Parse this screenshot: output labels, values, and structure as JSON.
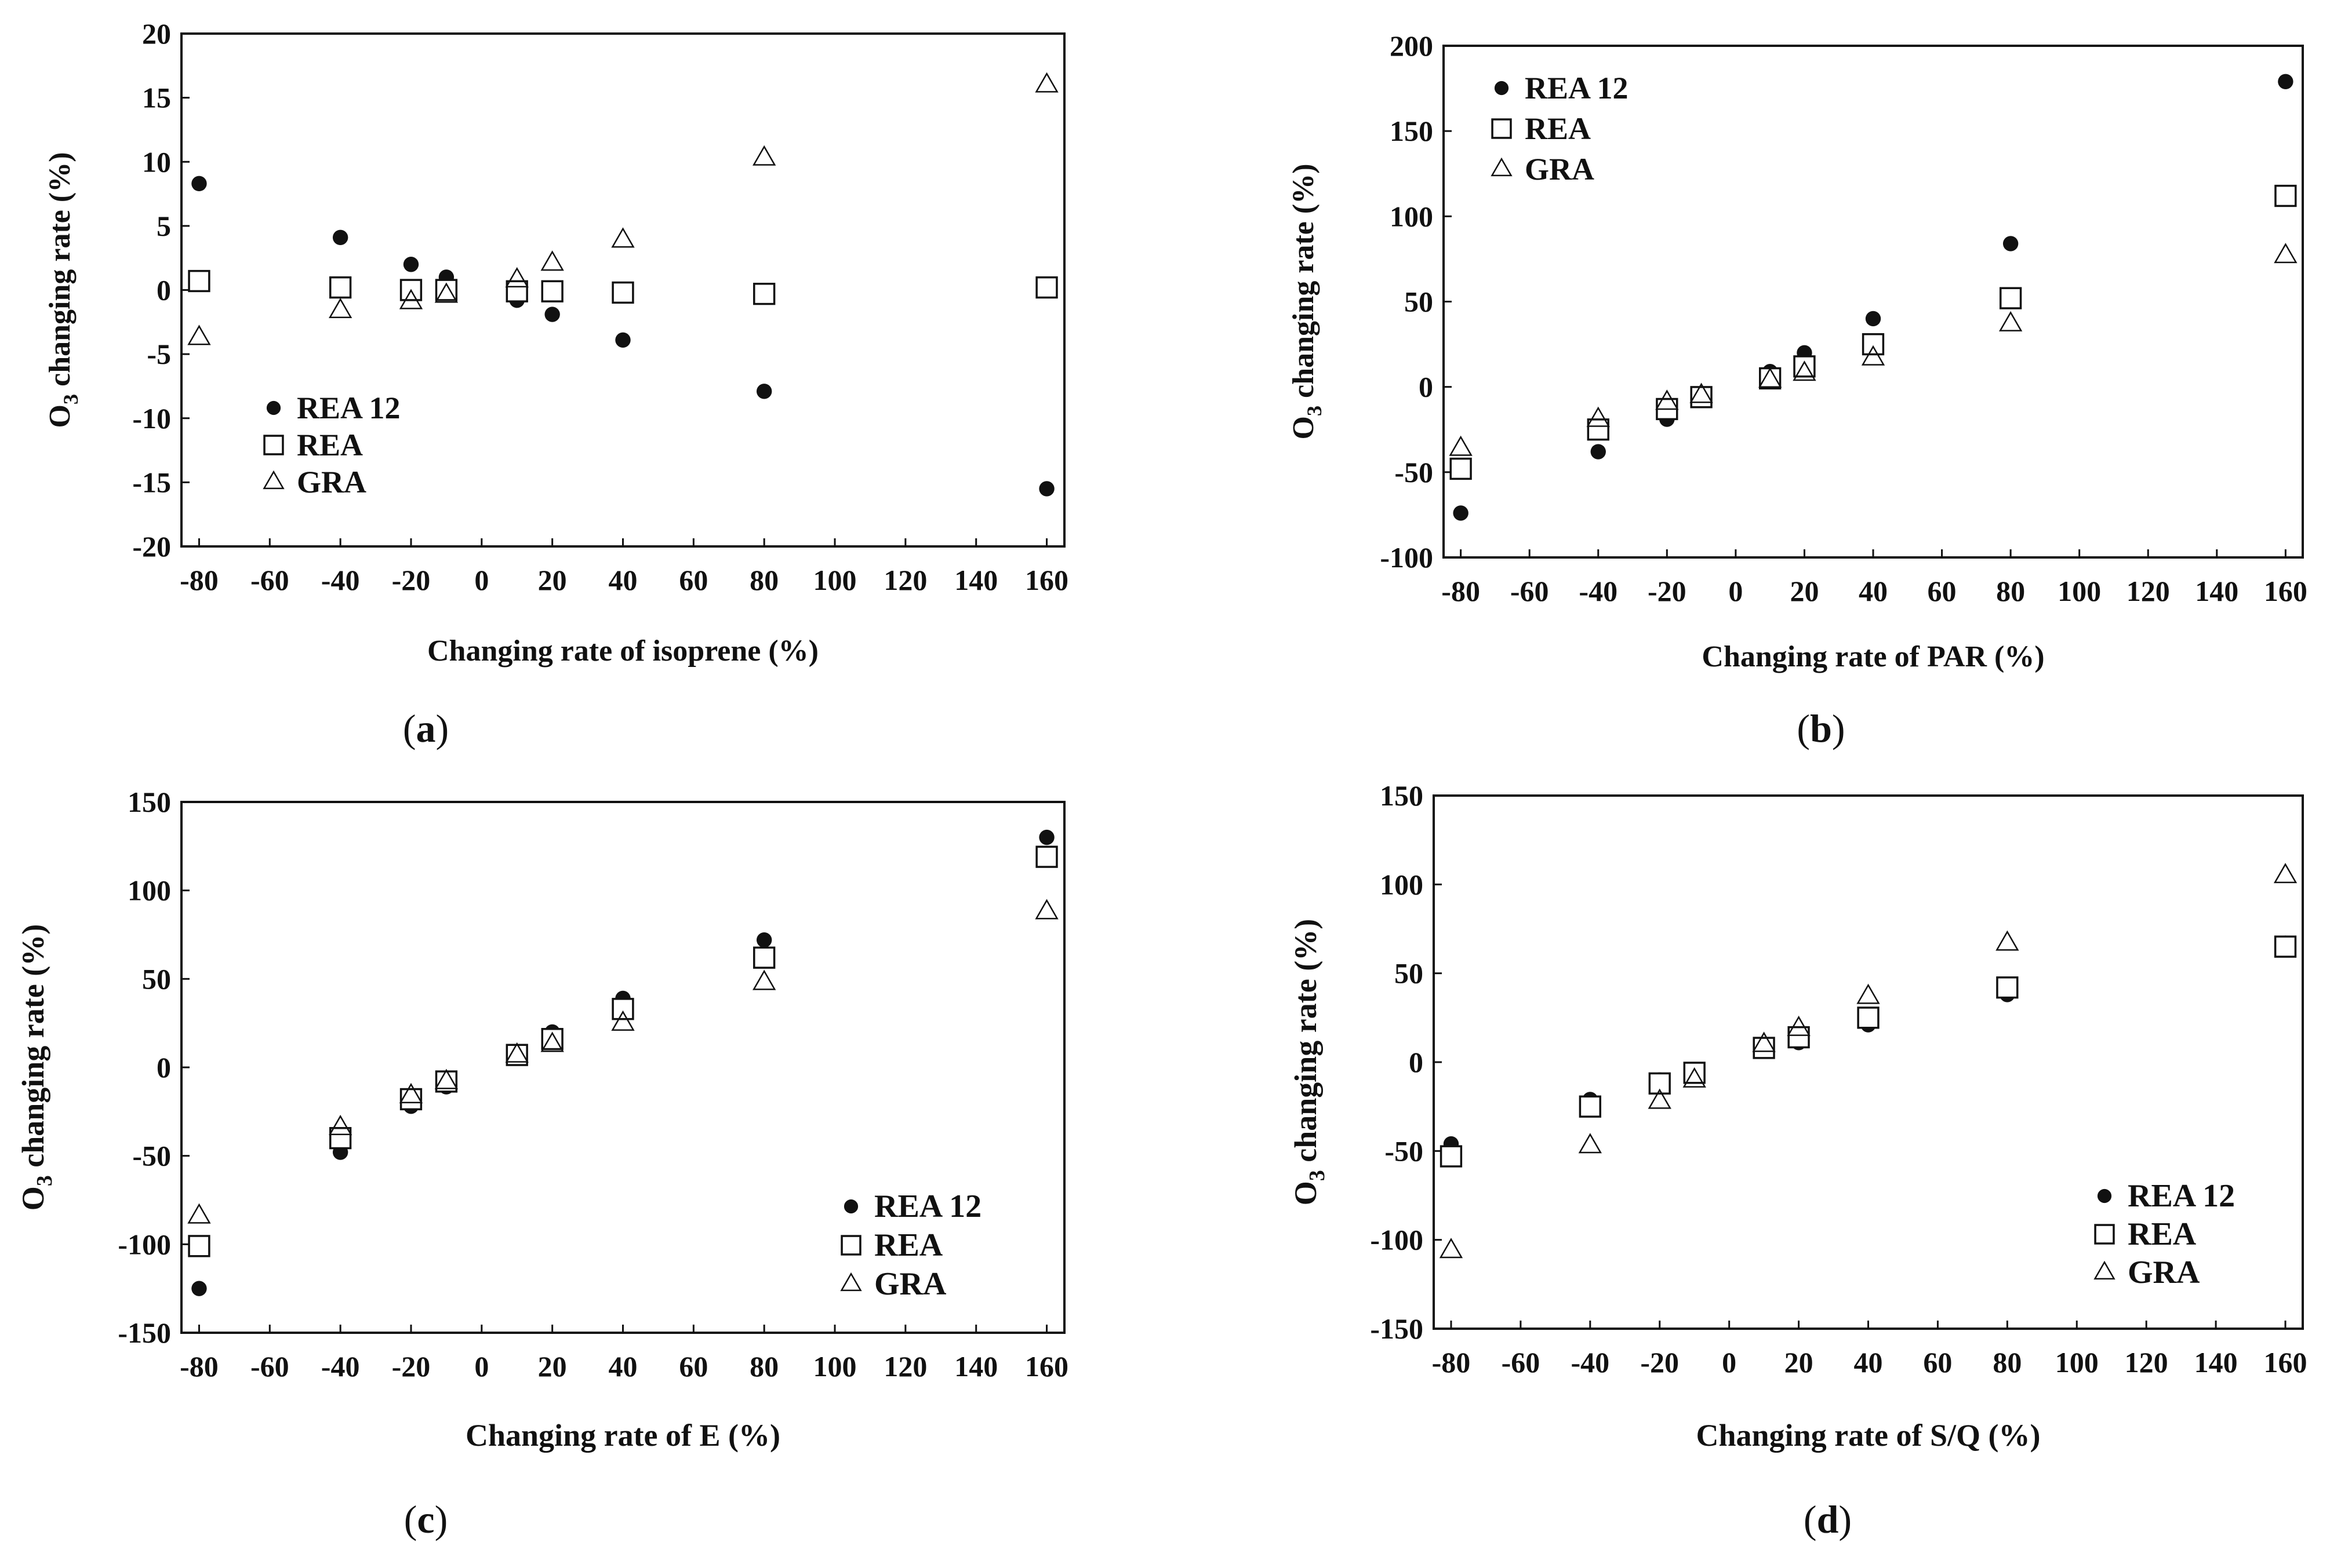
{
  "figure": {
    "panels": [
      "a",
      "b",
      "c",
      "d"
    ]
  },
  "legend_labels": [
    "REA 12",
    "REA",
    "GRA"
  ],
  "colors": {
    "ink": "#111111",
    "background": "#ffffff"
  },
  "chart_data": [
    {
      "id": "a",
      "type": "scatter",
      "caption": "a",
      "xlabel": "Changing  rate of isoprene (%)",
      "ylabel_prefix": "O",
      "ylabel_sub": "3",
      "ylabel_suffix": " changing  rate  (%)",
      "xlim": [
        -85,
        165
      ],
      "ylim": [
        -20,
        20
      ],
      "xticks": [
        -80,
        -60,
        -40,
        -20,
        0,
        20,
        40,
        60,
        80,
        100,
        120,
        140,
        160
      ],
      "yticks": [
        -20,
        -15,
        -10,
        -5,
        0,
        5,
        10,
        15,
        20
      ],
      "legend_position": "bottom-left",
      "series": [
        {
          "name": "REA 12",
          "marker": "dot",
          "x": [
            -80,
            -40,
            -20,
            -10,
            10,
            20,
            40,
            80,
            160
          ],
          "y": [
            8.3,
            4.1,
            2.0,
            1.0,
            -0.8,
            -1.9,
            -3.9,
            -7.9,
            -15.5
          ]
        },
        {
          "name": "REA",
          "marker": "square",
          "x": [
            -80,
            -40,
            -20,
            -10,
            10,
            20,
            40,
            80,
            160
          ],
          "y": [
            0.7,
            0.2,
            0.0,
            0.0,
            -0.1,
            -0.1,
            -0.2,
            -0.3,
            0.2
          ]
        },
        {
          "name": "GRA",
          "marker": "triangle",
          "x": [
            -80,
            -40,
            -20,
            -10,
            10,
            20,
            40,
            80,
            160
          ],
          "y": [
            -3.7,
            -1.6,
            -0.9,
            -0.4,
            0.8,
            2.1,
            3.9,
            10.3,
            16.0
          ]
        }
      ]
    },
    {
      "id": "b",
      "type": "scatter",
      "caption": "b",
      "xlabel": "Changing  rate of PAR (%)",
      "ylabel_prefix": "O",
      "ylabel_sub": "3",
      "ylabel_suffix": " changing  rate  (%)",
      "xlim": [
        -85,
        165
      ],
      "ylim": [
        -100,
        200
      ],
      "xticks": [
        -80,
        -60,
        -40,
        -20,
        0,
        20,
        40,
        60,
        80,
        100,
        120,
        140,
        160
      ],
      "yticks": [
        -100,
        -50,
        0,
        50,
        100,
        150,
        200
      ],
      "legend_position": "top-left",
      "series": [
        {
          "name": "REA 12",
          "marker": "dot",
          "x": [
            -80,
            -40,
            -20,
            -10,
            10,
            20,
            40,
            80,
            160
          ],
          "y": [
            -74,
            -38,
            -19,
            -8,
            9,
            20,
            40,
            84,
            179
          ]
        },
        {
          "name": "REA",
          "marker": "square",
          "x": [
            -80,
            -40,
            -20,
            -10,
            10,
            20,
            40,
            80,
            160
          ],
          "y": [
            -48,
            -25,
            -13,
            -6,
            5,
            12,
            25,
            52,
            112
          ]
        },
        {
          "name": "GRA",
          "marker": "triangle",
          "x": [
            -80,
            -40,
            -20,
            -10,
            10,
            20,
            40,
            80,
            160
          ],
          "y": [
            -36,
            -19,
            -9,
            -5,
            4,
            8,
            17,
            37,
            77
          ]
        }
      ]
    },
    {
      "id": "c",
      "type": "scatter",
      "caption": "c",
      "xlabel": "Changing rate of E (%)",
      "ylabel_prefix": "O",
      "ylabel_sub": "3",
      "ylabel_suffix": " changing rate  (%)",
      "xlim": [
        -85,
        165
      ],
      "ylim": [
        -150,
        150
      ],
      "xticks": [
        -80,
        -60,
        -40,
        -20,
        0,
        20,
        40,
        60,
        80,
        100,
        120,
        140,
        160
      ],
      "yticks": [
        -150,
        -100,
        -50,
        0,
        50,
        100,
        150
      ],
      "legend_position": "bottom-right",
      "series": [
        {
          "name": "REA 12",
          "marker": "dot",
          "x": [
            -80,
            -40,
            -20,
            -10,
            10,
            20,
            40,
            80,
            160
          ],
          "y": [
            -125,
            -48,
            -22,
            -11,
            9,
            20,
            39,
            72,
            130
          ]
        },
        {
          "name": "REA",
          "marker": "square",
          "x": [
            -80,
            -40,
            -20,
            -10,
            10,
            20,
            40,
            80,
            160
          ],
          "y": [
            -101,
            -40,
            -18,
            -8,
            7,
            16,
            33,
            62,
            119
          ]
        },
        {
          "name": "GRA",
          "marker": "triangle",
          "x": [
            -80,
            -40,
            -20,
            -10,
            10,
            20,
            40,
            80,
            160
          ],
          "y": [
            -84,
            -34,
            -16,
            -8,
            7,
            13,
            25,
            48,
            88
          ]
        }
      ]
    },
    {
      "id": "d",
      "type": "scatter",
      "caption": "d",
      "xlabel": "Changing rate of S/Q (%)",
      "ylabel_prefix": "O",
      "ylabel_sub": "3",
      "ylabel_suffix": " changing rate  (%)",
      "xlim": [
        -85,
        165
      ],
      "ylim": [
        -150,
        150
      ],
      "xticks": [
        -80,
        -60,
        -40,
        -20,
        0,
        20,
        40,
        60,
        80,
        100,
        120,
        140,
        160
      ],
      "yticks": [
        -150,
        -100,
        -50,
        0,
        50,
        100,
        150
      ],
      "legend_position": "bottom-right",
      "series": [
        {
          "name": "REA 12",
          "marker": "dot",
          "x": [
            -80,
            -40,
            -20,
            -10,
            10,
            20,
            40,
            80,
            160
          ],
          "y": [
            -46,
            -21,
            -10,
            -5,
            7,
            11,
            21,
            38,
            67
          ]
        },
        {
          "name": "REA",
          "marker": "square",
          "x": [
            -80,
            -40,
            -20,
            -10,
            10,
            20,
            40,
            80,
            160
          ],
          "y": [
            -53,
            -25,
            -12,
            -6,
            8,
            14,
            25,
            42,
            65
          ]
        },
        {
          "name": "GRA",
          "marker": "triangle",
          "x": [
            -80,
            -40,
            -20,
            -10,
            10,
            20,
            40,
            80,
            160
          ],
          "y": [
            -106,
            -47,
            -22,
            -10,
            10,
            19,
            37,
            67,
            105
          ]
        }
      ]
    }
  ]
}
